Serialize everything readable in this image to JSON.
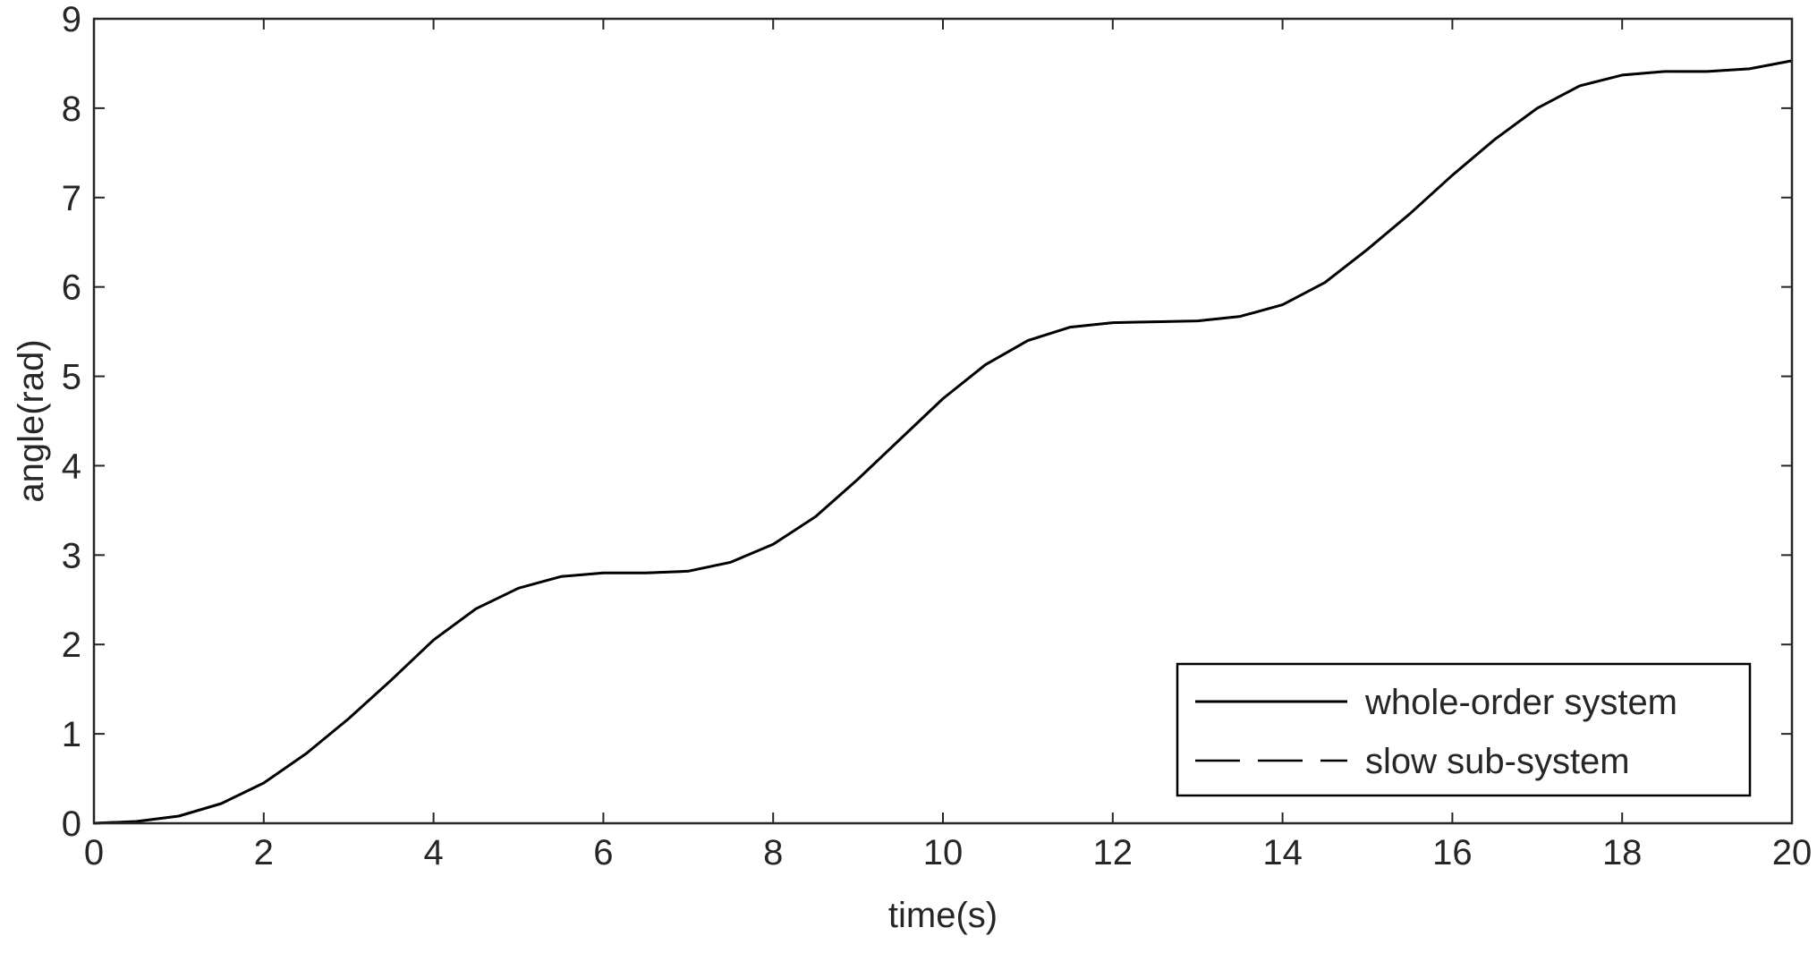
{
  "chart_data": {
    "type": "line",
    "title": "",
    "xlabel": "time(s)",
    "ylabel": "angle(rad)",
    "xlim": [
      0,
      20
    ],
    "ylim": [
      0,
      9
    ],
    "xticks": [
      0,
      2,
      4,
      6,
      8,
      10,
      12,
      14,
      16,
      18,
      20
    ],
    "yticks": [
      0,
      1,
      2,
      3,
      4,
      5,
      6,
      7,
      8,
      9
    ],
    "grid": false,
    "legend_position": "bottom-right",
    "series": [
      {
        "name": "whole-order system",
        "style": "solid",
        "color": "#000000",
        "x": [
          0,
          0.5,
          1,
          1.5,
          2,
          2.5,
          3,
          3.5,
          4,
          4.5,
          5,
          5.5,
          6,
          6.5,
          7,
          7.5,
          8,
          8.5,
          9,
          9.5,
          10,
          10.5,
          11,
          11.5,
          12,
          12.5,
          13,
          13.5,
          14,
          14.5,
          15,
          15.5,
          16,
          16.5,
          17,
          17.5,
          18,
          18.5,
          19,
          19.5,
          20
        ],
        "y": [
          0,
          0.02,
          0.08,
          0.22,
          0.45,
          0.78,
          1.17,
          1.6,
          2.05,
          2.4,
          2.63,
          2.76,
          2.8,
          2.8,
          2.82,
          2.92,
          3.12,
          3.43,
          3.85,
          4.3,
          4.75,
          5.13,
          5.4,
          5.55,
          5.6,
          5.61,
          5.62,
          5.67,
          5.8,
          6.05,
          6.42,
          6.82,
          7.25,
          7.65,
          8.0,
          8.25,
          8.37,
          8.41,
          8.41,
          8.44,
          8.53
        ]
      },
      {
        "name": "slow sub-system",
        "style": "dashed",
        "color": "#000000",
        "x": [
          0,
          0.5,
          1,
          1.5,
          2,
          2.5,
          3,
          3.5,
          4,
          4.5,
          5,
          5.5,
          6,
          6.5,
          7,
          7.5,
          8,
          8.5,
          9,
          9.5,
          10,
          10.5,
          11,
          11.5,
          12,
          12.5,
          13,
          13.5,
          14,
          14.5,
          15,
          15.5,
          16,
          16.5,
          17,
          17.5,
          18,
          18.5,
          19,
          19.5,
          20
        ],
        "y": [
          0,
          0.02,
          0.08,
          0.22,
          0.45,
          0.78,
          1.17,
          1.6,
          2.05,
          2.4,
          2.63,
          2.76,
          2.8,
          2.8,
          2.82,
          2.92,
          3.12,
          3.43,
          3.85,
          4.3,
          4.75,
          5.13,
          5.4,
          5.55,
          5.6,
          5.61,
          5.62,
          5.67,
          5.8,
          6.05,
          6.42,
          6.82,
          7.25,
          7.65,
          8.0,
          8.25,
          8.37,
          8.41,
          8.41,
          8.44,
          8.53
        ]
      }
    ]
  }
}
